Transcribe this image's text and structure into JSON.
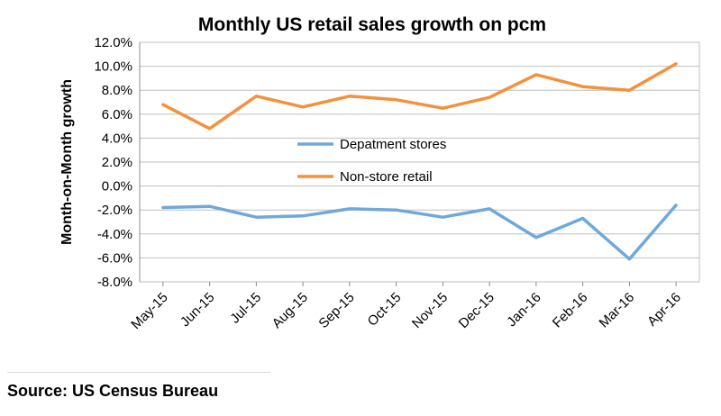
{
  "chart_data": {
    "type": "line",
    "title": "Monthly US retail sales growth on pcm",
    "ylabel": "Month-on-Month growth",
    "xlabel": "",
    "categories": [
      "May-15",
      "Jun-15",
      "Jul-15",
      "Aug-15",
      "Sep-15",
      "Oct-15",
      "Nov-15",
      "Dec-15",
      "Jan-16",
      "Feb-16",
      "Mar-16",
      "Apr-16"
    ],
    "ylim": [
      -8.0,
      12.0
    ],
    "yticks": [
      "-8.0%",
      "-6.0%",
      "-4.0%",
      "-2.0%",
      "0.0%",
      "2.0%",
      "4.0%",
      "6.0%",
      "8.0%",
      "10.0%",
      "12.0%"
    ],
    "grid": true,
    "legend_position": "center",
    "series": [
      {
        "name": "Depatment stores",
        "color": "#70a8da",
        "values": [
          -1.8,
          -1.7,
          -2.6,
          -2.5,
          -1.9,
          -2.0,
          -2.6,
          -1.9,
          -4.3,
          -2.7,
          -6.1,
          -1.6
        ]
      },
      {
        "name": "Non-store retail",
        "color": "#f3913d",
        "values": [
          6.8,
          4.8,
          7.5,
          6.6,
          7.5,
          7.2,
          6.5,
          7.4,
          9.3,
          8.3,
          8.0,
          10.2
        ]
      }
    ]
  },
  "footer": {
    "source": "Source: US Census Bureau"
  }
}
